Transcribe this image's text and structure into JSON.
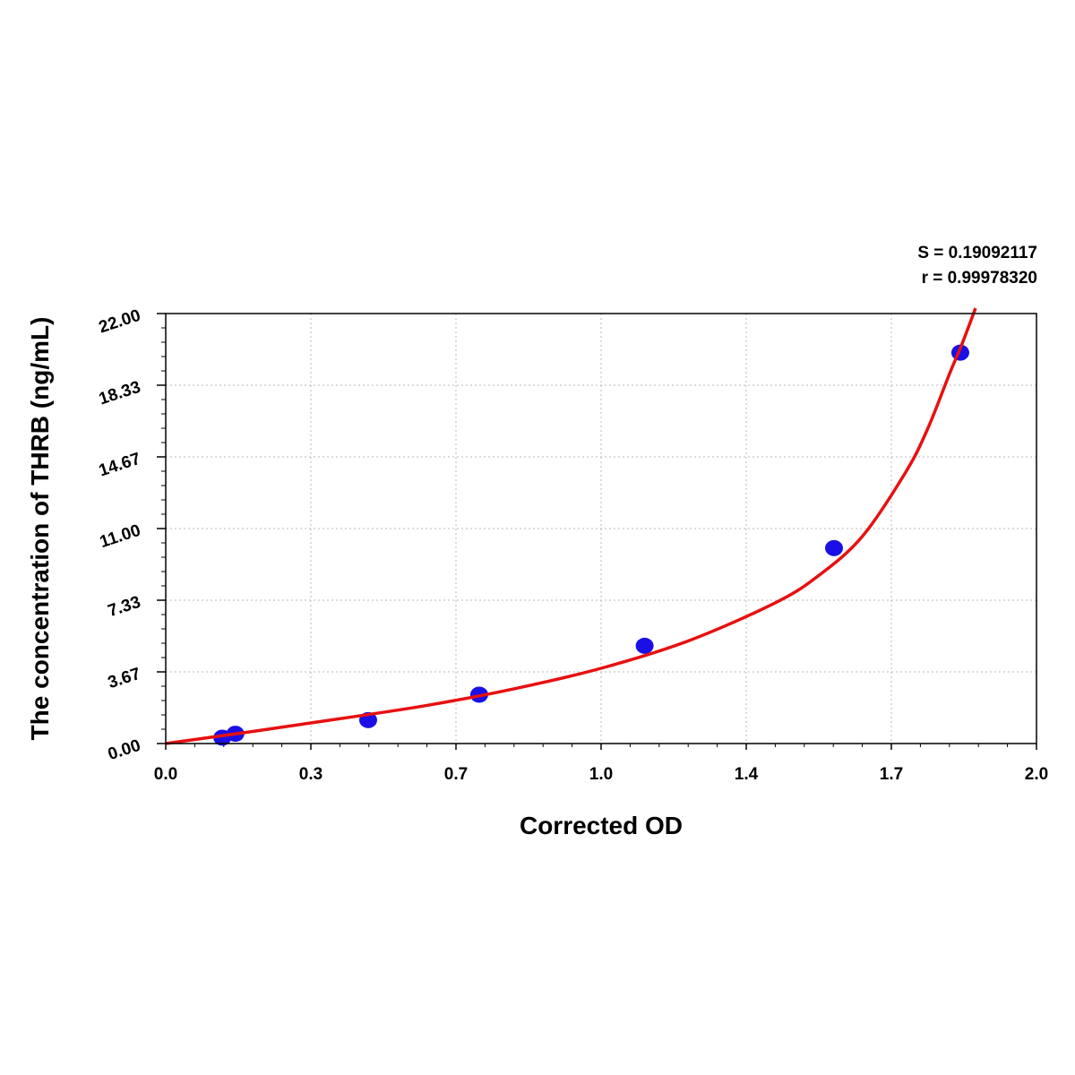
{
  "chart_data": {
    "type": "scatter",
    "title": "",
    "xlabel": "Corrected OD",
    "ylabel": "The concentration of THRB (ng/mL)",
    "xlim": [
      0.0,
      2.0
    ],
    "ylim": [
      0.0,
      22.0
    ],
    "x_ticks": [
      "0.0",
      "0.3",
      "0.7",
      "1.0",
      "1.4",
      "1.7",
      "2.0"
    ],
    "y_ticks": [
      "0.00",
      "3.67",
      "7.33",
      "11.00",
      "14.67",
      "18.33",
      "22.00"
    ],
    "grid": true,
    "points": {
      "color": "#1a10e6",
      "x": [
        0.13,
        0.16,
        0.465,
        0.72,
        1.1,
        1.535,
        1.825
      ],
      "y": [
        0.3,
        0.5,
        1.2,
        2.5,
        5.0,
        10.0,
        20.0
      ]
    },
    "fit_curve": {
      "color": "#e81010",
      "x": [
        0.0,
        0.2,
        0.4,
        0.6,
        0.8,
        1.0,
        1.2,
        1.4,
        1.5,
        1.6,
        1.7,
        1.75,
        1.8,
        1.83,
        1.86
      ],
      "y": [
        0.0,
        0.62,
        1.27,
        1.95,
        2.8,
        3.85,
        5.25,
        7.2,
        8.6,
        10.6,
        13.9,
        16.1,
        18.9,
        20.5,
        22.4
      ]
    },
    "annotations": {
      "s": "S = 0.19092117",
      "r": "r = 0.99978320"
    }
  }
}
